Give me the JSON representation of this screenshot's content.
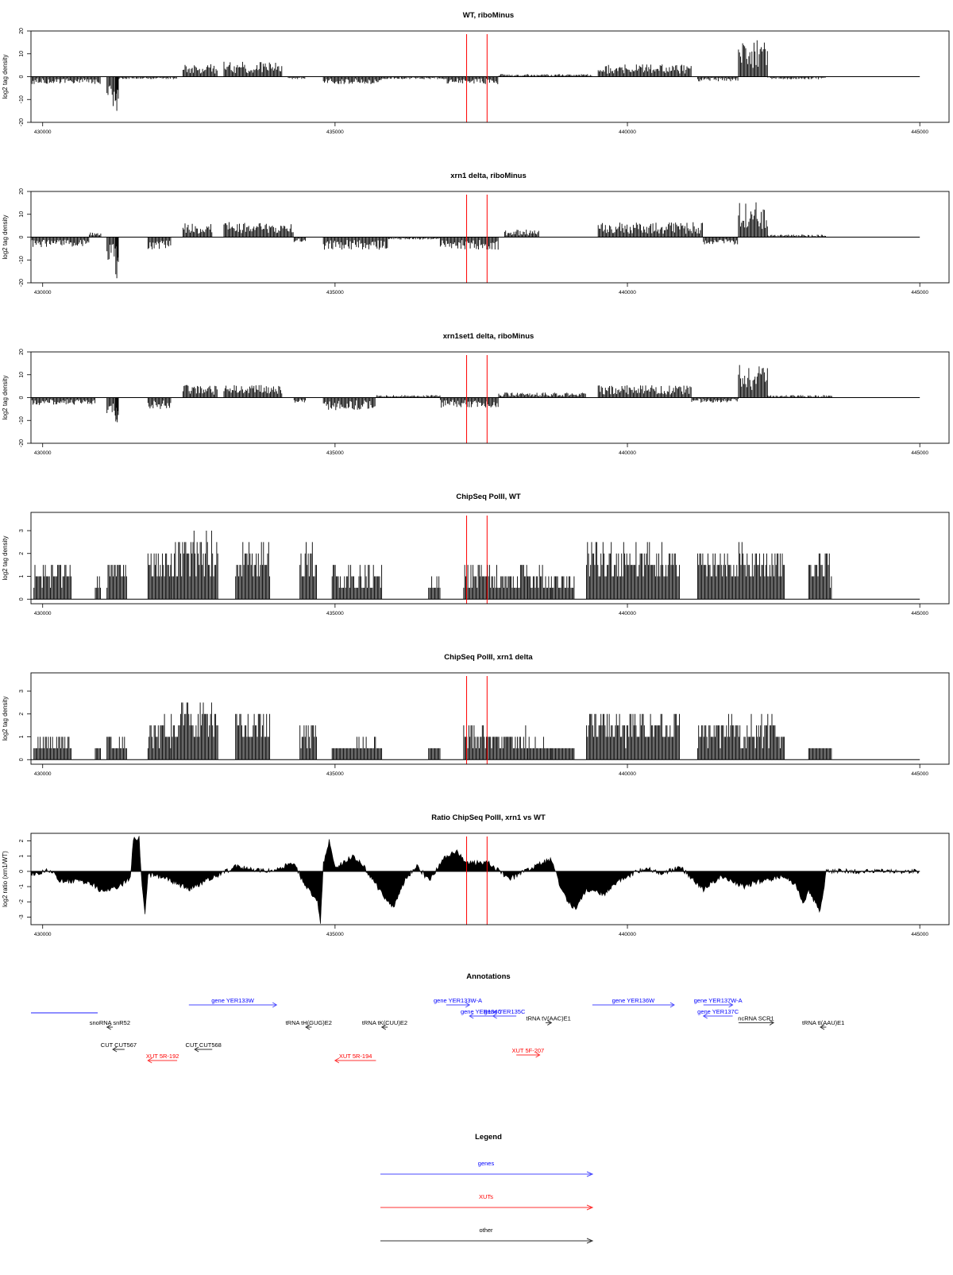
{
  "colors": {
    "data": "#000000",
    "marker": "#ff0000",
    "gene": "#0000ff",
    "xut": "#ff0000",
    "other": "#000000",
    "frame": "#000000"
  },
  "x_tick_labels": [
    "430000",
    "435000",
    "440000",
    "445000"
  ],
  "markers": {
    "x": [
      437250,
      437600
    ]
  },
  "chart_data": [
    {
      "type": "bar",
      "title": "WT, riboMinus",
      "xlabel": "",
      "ylabel": "log2 tag density",
      "xlim": [
        429800,
        445500
      ],
      "ylim": [
        -20,
        20
      ],
      "yticks": [
        "-20",
        "-10",
        "0",
        "10",
        "20"
      ],
      "grid": false,
      "segments": [
        {
          "x": [
            429800,
            431000
          ],
          "y": -3
        },
        {
          "x": [
            431100,
            431300
          ],
          "y": -12
        },
        {
          "x": [
            431250,
            431300
          ],
          "y": -20
        },
        {
          "x": [
            431300,
            432300
          ],
          "y": -1
        },
        {
          "x": [
            432400,
            433000
          ],
          "y": 5
        },
        {
          "x": [
            433100,
            434100
          ],
          "y": 6
        },
        {
          "x": [
            434200,
            434500
          ],
          "y": -1
        },
        {
          "x": [
            434800,
            435800
          ],
          "y": -3
        },
        {
          "x": [
            435800,
            436900
          ],
          "y": -1
        },
        {
          "x": [
            436900,
            437800
          ],
          "y": -3
        },
        {
          "x": [
            437800,
            439400
          ],
          "y": 1
        },
        {
          "x": [
            439500,
            441100
          ],
          "y": 5
        },
        {
          "x": [
            441200,
            441900
          ],
          "y": -2
        },
        {
          "x": [
            441900,
            442400
          ],
          "y": 15
        },
        {
          "x": [
            442400,
            443400
          ],
          "y": -1
        }
      ]
    },
    {
      "type": "bar",
      "title": "xrn1 delta, riboMinus",
      "xlabel": "",
      "ylabel": "log2 tag density",
      "xlim": [
        429800,
        445500
      ],
      "ylim": [
        -20,
        20
      ],
      "yticks": [
        "-20",
        "-10",
        "0",
        "10",
        "20"
      ],
      "grid": false,
      "segments": [
        {
          "x": [
            429800,
            430800
          ],
          "y": -4
        },
        {
          "x": [
            430800,
            431000
          ],
          "y": 2
        },
        {
          "x": [
            431100,
            431300
          ],
          "y": -10
        },
        {
          "x": [
            431250,
            431300
          ],
          "y": -18
        },
        {
          "x": [
            431800,
            432200
          ],
          "y": -5
        },
        {
          "x": [
            432400,
            432900
          ],
          "y": 6
        },
        {
          "x": [
            433100,
            434300
          ],
          "y": 6
        },
        {
          "x": [
            434300,
            434500
          ],
          "y": -2
        },
        {
          "x": [
            434800,
            435900
          ],
          "y": -5
        },
        {
          "x": [
            435900,
            436800
          ],
          "y": -1
        },
        {
          "x": [
            436800,
            437800
          ],
          "y": -5
        },
        {
          "x": [
            437900,
            438500
          ],
          "y": 3
        },
        {
          "x": [
            439500,
            441300
          ],
          "y": 6
        },
        {
          "x": [
            441300,
            441900
          ],
          "y": -3
        },
        {
          "x": [
            441900,
            442400
          ],
          "y": 14
        },
        {
          "x": [
            442400,
            443400
          ],
          "y": 1
        }
      ]
    },
    {
      "type": "bar",
      "title": "xrn1set1 delta, riboMinus",
      "xlabel": "",
      "ylabel": "log2 tag density",
      "xlim": [
        429800,
        445500
      ],
      "ylim": [
        -20,
        20
      ],
      "yticks": [
        "-20",
        "-10",
        "0",
        "10",
        "20"
      ],
      "grid": false,
      "segments": [
        {
          "x": [
            429800,
            430900
          ],
          "y": -3
        },
        {
          "x": [
            431100,
            431300
          ],
          "y": -10
        },
        {
          "x": [
            431250,
            431300
          ],
          "y": -15
        },
        {
          "x": [
            431800,
            432200
          ],
          "y": -5
        },
        {
          "x": [
            432400,
            433000
          ],
          "y": 5
        },
        {
          "x": [
            433100,
            434100
          ],
          "y": 5
        },
        {
          "x": [
            434300,
            434500
          ],
          "y": -2
        },
        {
          "x": [
            434800,
            435700
          ],
          "y": -5
        },
        {
          "x": [
            435700,
            436800
          ],
          "y": 1
        },
        {
          "x": [
            436800,
            437800
          ],
          "y": -4
        },
        {
          "x": [
            437800,
            439300
          ],
          "y": 2
        },
        {
          "x": [
            439500,
            441100
          ],
          "y": 5
        },
        {
          "x": [
            441100,
            441900
          ],
          "y": -2
        },
        {
          "x": [
            441900,
            442400
          ],
          "y": 13
        },
        {
          "x": [
            442400,
            443500
          ],
          "y": 1
        }
      ]
    },
    {
      "type": "bar",
      "title": "ChipSeq PolII, WT",
      "xlabel": "",
      "ylabel": "log2 tag density",
      "xlim": [
        429800,
        445500
      ],
      "ylim": [
        -0.2,
        3.8
      ],
      "yticks": [
        "0",
        "1",
        "2",
        "3"
      ],
      "grid": false,
      "segments": [
        {
          "x": [
            429850,
            430500
          ],
          "y": 1.6
        },
        {
          "x": [
            430900,
            431000
          ],
          "y": 1.0
        },
        {
          "x": [
            431100,
            431450
          ],
          "y": 1.6
        },
        {
          "x": [
            431800,
            432200
          ],
          "y": 2.0
        },
        {
          "x": [
            432200,
            433000
          ],
          "y": 2.6
        },
        {
          "x": [
            433300,
            433900
          ],
          "y": 2.3
        },
        {
          "x": [
            434400,
            434700
          ],
          "y": 2.2
        },
        {
          "x": [
            434950,
            435800
          ],
          "y": 1.3
        },
        {
          "x": [
            436600,
            436800
          ],
          "y": 0.8
        },
        {
          "x": [
            437200,
            438300
          ],
          "y": 1.4
        },
        {
          "x": [
            438300,
            438700
          ],
          "y": 1.2
        },
        {
          "x": [
            438700,
            439100
          ],
          "y": 0.9
        },
        {
          "x": [
            439300,
            440900
          ],
          "y": 2.2
        },
        {
          "x": [
            441200,
            442700
          ],
          "y": 2.1
        },
        {
          "x": [
            443100,
            443500
          ],
          "y": 1.8
        }
      ]
    },
    {
      "type": "bar",
      "title": "ChipSeq PolII, xrn1 delta",
      "xlabel": "",
      "ylabel": "log2 tag density",
      "xlim": [
        429800,
        445500
      ],
      "ylim": [
        -0.2,
        3.8
      ],
      "yticks": [
        "0",
        "1",
        "2",
        "3"
      ],
      "grid": false,
      "segments": [
        {
          "x": [
            429850,
            430500
          ],
          "y": 0.9
        },
        {
          "x": [
            430900,
            431000
          ],
          "y": 0.3
        },
        {
          "x": [
            431100,
            431450
          ],
          "y": 1.0
        },
        {
          "x": [
            431800,
            432200
          ],
          "y": 1.6
        },
        {
          "x": [
            432200,
            433000
          ],
          "y": 2.3
        },
        {
          "x": [
            433300,
            433900
          ],
          "y": 2.0
        },
        {
          "x": [
            434400,
            434700
          ],
          "y": 1.6
        },
        {
          "x": [
            434950,
            435800
          ],
          "y": 0.8
        },
        {
          "x": [
            436600,
            436800
          ],
          "y": 0.4
        },
        {
          "x": [
            437200,
            438300
          ],
          "y": 1.2
        },
        {
          "x": [
            438300,
            438700
          ],
          "y": 0.9
        },
        {
          "x": [
            438700,
            439100
          ],
          "y": 0.5
        },
        {
          "x": [
            439300,
            440900
          ],
          "y": 2.0
        },
        {
          "x": [
            441200,
            442700
          ],
          "y": 1.7
        },
        {
          "x": [
            443100,
            443500
          ],
          "y": 0.6
        }
      ]
    },
    {
      "type": "area",
      "title": "Ratio ChipSeq PolII, xrn1 vs WT",
      "xlabel": "",
      "ylabel": "log2 ratio (xrn1/WT)",
      "xlim": [
        429800,
        445500
      ],
      "ylim": [
        -3.5,
        2.5
      ],
      "yticks": [
        "-3",
        "-2",
        "-1",
        "0",
        "1",
        "2"
      ],
      "grid": false,
      "profile": [
        [
          429800,
          -0.2
        ],
        [
          430100,
          0.1
        ],
        [
          430300,
          -0.6
        ],
        [
          430800,
          -0.7
        ],
        [
          431000,
          -1.3
        ],
        [
          431300,
          -1.0
        ],
        [
          431500,
          -0.4
        ],
        [
          431550,
          2.2
        ],
        [
          431650,
          2.2
        ],
        [
          431700,
          -1.0
        ],
        [
          431750,
          -2.8
        ],
        [
          431800,
          -0.2
        ],
        [
          432100,
          -0.4
        ],
        [
          432500,
          -1.2
        ],
        [
          432900,
          -0.4
        ],
        [
          433300,
          0.3
        ],
        [
          433800,
          0.0
        ],
        [
          434000,
          0.2
        ],
        [
          434300,
          0.5
        ],
        [
          434500,
          -1.0
        ],
        [
          434700,
          -2.0
        ],
        [
          434750,
          -3.5
        ],
        [
          434800,
          0.5
        ],
        [
          434850,
          1.2
        ],
        [
          434900,
          2.1
        ],
        [
          435000,
          0.2
        ],
        [
          435300,
          1.0
        ],
        [
          435500,
          0.3
        ],
        [
          435800,
          -1.5
        ],
        [
          436000,
          -2.3
        ],
        [
          436200,
          -0.5
        ],
        [
          436400,
          0.4
        ],
        [
          436600,
          -0.6
        ],
        [
          436900,
          1.0
        ],
        [
          437100,
          1.3
        ],
        [
          437250,
          0.5
        ],
        [
          437600,
          0.6
        ],
        [
          438000,
          -0.5
        ],
        [
          438400,
          0.3
        ],
        [
          438700,
          0.8
        ],
        [
          438900,
          -1.5
        ],
        [
          439100,
          -2.5
        ],
        [
          439300,
          -1.2
        ],
        [
          439600,
          -1.5
        ],
        [
          439900,
          -0.5
        ],
        [
          440300,
          0.2
        ],
        [
          440600,
          -0.1
        ],
        [
          440900,
          0.3
        ],
        [
          441300,
          -1.2
        ],
        [
          441600,
          -0.3
        ],
        [
          442000,
          -1.0
        ],
        [
          442300,
          -0.6
        ],
        [
          442700,
          -0.3
        ],
        [
          442900,
          -1.0
        ],
        [
          443000,
          -2.2
        ],
        [
          443100,
          -1.3
        ],
        [
          443300,
          -2.6
        ],
        [
          443400,
          0.0
        ],
        [
          445000,
          0.0
        ]
      ]
    }
  ],
  "annotations": {
    "title": "Annotations",
    "features": [
      {
        "label": "gene YER133W",
        "type": "gene",
        "start": 432500,
        "end": 434000,
        "dir": 1,
        "row": 0
      },
      {
        "label": "gene YER133W-A",
        "type": "gene",
        "start": 436900,
        "end": 437300,
        "dir": 1,
        "row": 0
      },
      {
        "label": "gene YER134C",
        "type": "gene",
        "start": 437300,
        "end": 437700,
        "dir": -1,
        "row": 1
      },
      {
        "label": "gene YER135C",
        "type": "gene",
        "start": 437700,
        "end": 438100,
        "dir": -1,
        "row": 1
      },
      {
        "label": "gene YER136W",
        "type": "gene",
        "start": 439400,
        "end": 440800,
        "dir": 1,
        "row": 0
      },
      {
        "label": "gene YER137W-A",
        "type": "gene",
        "start": 441300,
        "end": 441800,
        "dir": 1,
        "row": 0
      },
      {
        "label": "gene YER137C",
        "type": "gene",
        "start": 441300,
        "end": 441800,
        "dir": -1,
        "row": 1
      },
      {
        "label": "snoRNA snR52",
        "type": "other",
        "start": 431100,
        "end": 431200,
        "dir": -1,
        "row": 2
      },
      {
        "label": "tRNA tH(GUG)E2",
        "type": "other",
        "start": 434500,
        "end": 434600,
        "dir": -1,
        "row": 2
      },
      {
        "label": "tRNA tK(CUU)E2",
        "type": "other",
        "start": 435800,
        "end": 435900,
        "dir": -1,
        "row": 2
      },
      {
        "label": "tRNA tV(AAC)E1",
        "type": "other",
        "start": 438600,
        "end": 438700,
        "dir": 1,
        "row": 1.6
      },
      {
        "label": "ncRNA SCR1",
        "type": "other",
        "start": 441900,
        "end": 442500,
        "dir": 1,
        "row": 1.6
      },
      {
        "label": "tRNA tI(AAU)E1",
        "type": "other",
        "start": 443300,
        "end": 443400,
        "dir": -1,
        "row": 2
      },
      {
        "label": "CUT CUT567",
        "type": "other",
        "start": 431200,
        "end": 431400,
        "dir": -1,
        "row": 4
      },
      {
        "label": "CUT CUT568",
        "type": "other",
        "start": 432600,
        "end": 432900,
        "dir": -1,
        "row": 4
      },
      {
        "label": "XUT 5R-192",
        "type": "xut",
        "start": 431800,
        "end": 432300,
        "dir": -1,
        "row": 5
      },
      {
        "label": "XUT 5R-194",
        "type": "xut",
        "start": 435000,
        "end": 435700,
        "dir": -1,
        "row": 5
      },
      {
        "label": "XUT 5F-207",
        "type": "xut",
        "start": 438100,
        "end": 438500,
        "dir": 1,
        "row": 4.5
      }
    ]
  },
  "legend": {
    "title": "Legend",
    "items": [
      {
        "label": "genes",
        "type": "gene"
      },
      {
        "label": "XUTs",
        "type": "xut"
      },
      {
        "label": "other",
        "type": "other"
      }
    ]
  }
}
